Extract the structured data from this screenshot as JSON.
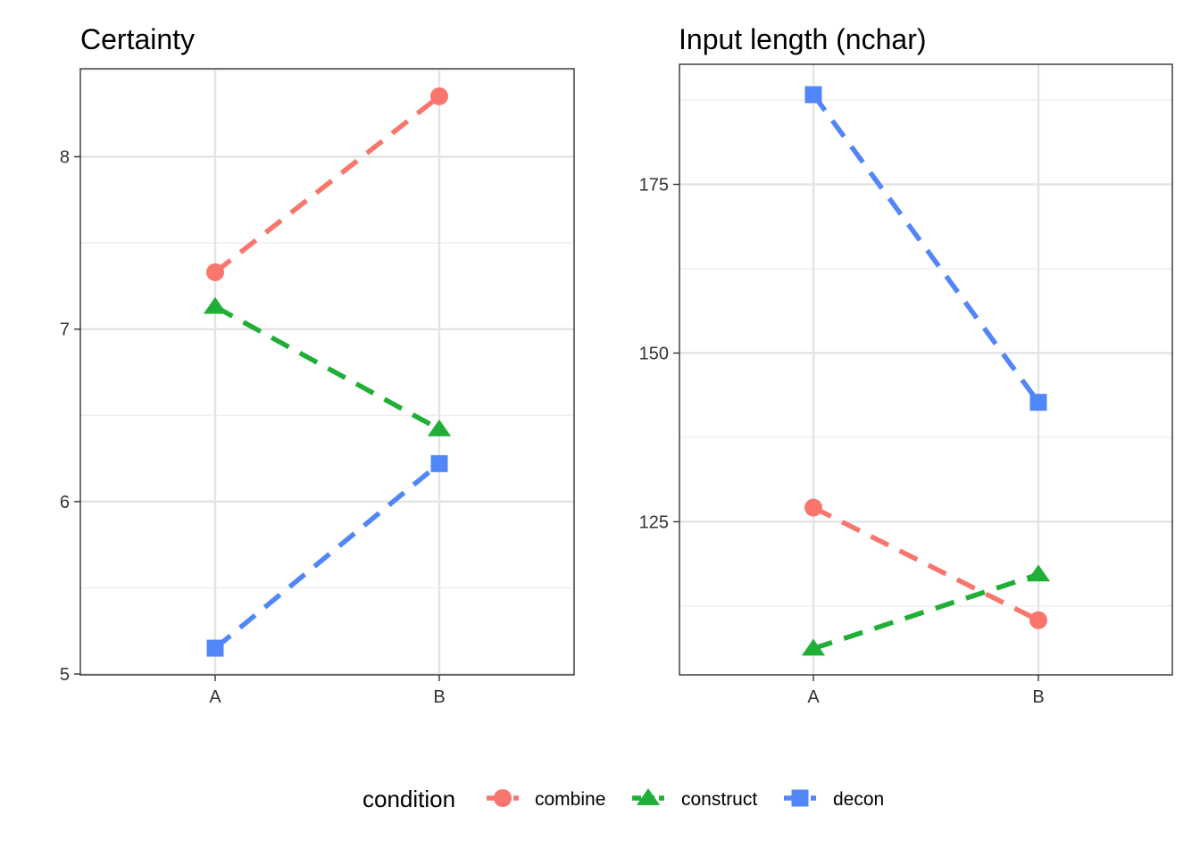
{
  "chart_data": [
    {
      "type": "line",
      "title": "Certainty",
      "xlabel": "",
      "ylabel": "",
      "categories": [
        "A",
        "B"
      ],
      "ylim": [
        4.995,
        8.51
      ],
      "yticks": [
        5,
        6,
        7,
        8
      ],
      "ytick_labels": [
        "5",
        "6",
        "7",
        "8"
      ],
      "grid": true,
      "series": [
        {
          "name": "combine",
          "values": [
            7.33,
            8.35
          ]
        },
        {
          "name": "construct",
          "values": [
            7.13,
            6.42
          ]
        },
        {
          "name": "decon",
          "values": [
            5.15,
            6.22
          ]
        }
      ]
    },
    {
      "type": "line",
      "title": "Input length (nchar)",
      "xlabel": "",
      "ylabel": "",
      "categories": [
        "A",
        "B"
      ],
      "ylim": [
        102.3,
        192.8
      ],
      "yticks": [
        125,
        150,
        175
      ],
      "ytick_labels": [
        "125",
        "150",
        "175"
      ],
      "grid": true,
      "series": [
        {
          "name": "combine",
          "values": [
            127.1,
            110.4
          ]
        },
        {
          "name": "construct",
          "values": [
            106.2,
            117.2
          ]
        },
        {
          "name": "decon",
          "values": [
            188.3,
            142.7
          ]
        }
      ]
    }
  ],
  "legend": {
    "title": "condition",
    "position": "bottom",
    "items": [
      {
        "label": "combine",
        "color": "#F8766D",
        "shape": "circle"
      },
      {
        "label": "construct",
        "color": "#00BA38",
        "shape": "triangle"
      },
      {
        "label": "decon",
        "color": "#619CFF",
        "shape": "square"
      }
    ]
  },
  "colors": {
    "combine": "#F8766D",
    "construct": "#1FAF36",
    "decon": "#5086F7"
  }
}
